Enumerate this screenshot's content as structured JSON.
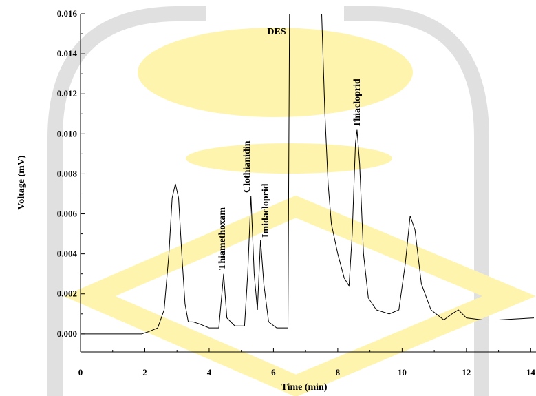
{
  "chart_data": {
    "type": "line",
    "xlabel": "Time (min)",
    "ylabel": "Voltage (mV)",
    "xlim": [
      0,
      14.1
    ],
    "ylim": [
      -0.0009,
      0.016
    ],
    "xticks": [
      0,
      2,
      4,
      6,
      8,
      10,
      12,
      14
    ],
    "yticks": [
      {
        "value": 0,
        "label": "0.000"
      },
      0.002,
      0.004,
      0.006,
      0.008,
      {
        "value": 0.01,
        "label": "0.010"
      },
      0.012,
      0.014,
      0.016
    ],
    "annotations": [
      "Thiamethoxam",
      "Clothianidin",
      "Imidacloprid",
      "DES",
      "Thiacloprid"
    ],
    "series": [
      {
        "color": "#000000",
        "x": [
          0,
          1.0,
          1.9,
          2.1,
          2.4,
          2.6,
          2.75,
          2.85,
          2.95,
          3.05,
          3.15,
          3.25,
          3.35,
          3.5,
          3.7,
          4.0,
          4.3,
          4.45,
          4.55,
          4.8,
          5.1,
          5.2,
          5.3,
          5.4,
          5.5,
          5.6,
          5.7,
          5.85,
          6.1,
          6.45,
          6.5,
          6.52,
          7.48,
          7.5,
          7.6,
          7.7,
          7.8,
          8.0,
          8.2,
          8.35,
          8.45,
          8.55,
          8.6,
          8.68,
          8.8,
          8.95,
          9.2,
          9.6,
          9.9,
          10.1,
          10.25,
          10.4,
          10.6,
          10.9,
          11.3,
          11.55,
          11.75,
          12.0,
          12.5,
          13.0,
          14.1
        ],
        "values": [
          0,
          0,
          0,
          0.0001,
          0.0003,
          0.0012,
          0.004,
          0.0068,
          0.0075,
          0.0068,
          0.004,
          0.0015,
          0.0006,
          0.0006,
          0.0005,
          0.0003,
          0.0003,
          0.003,
          0.0008,
          0.0004,
          0.0004,
          0.003,
          0.0069,
          0.003,
          0.0012,
          0.0047,
          0.0025,
          0.0006,
          0.0003,
          0.0003,
          0.016,
          0.0165,
          0.0165,
          0.016,
          0.011,
          0.0075,
          0.0055,
          0.004,
          0.0028,
          0.0024,
          0.005,
          0.0095,
          0.0102,
          0.0085,
          0.004,
          0.0018,
          0.0012,
          0.001,
          0.0012,
          0.0035,
          0.0059,
          0.0052,
          0.0025,
          0.0012,
          0.0007,
          0.001,
          0.0012,
          0.0008,
          0.0007,
          0.0007,
          0.0008
        ]
      }
    ]
  }
}
